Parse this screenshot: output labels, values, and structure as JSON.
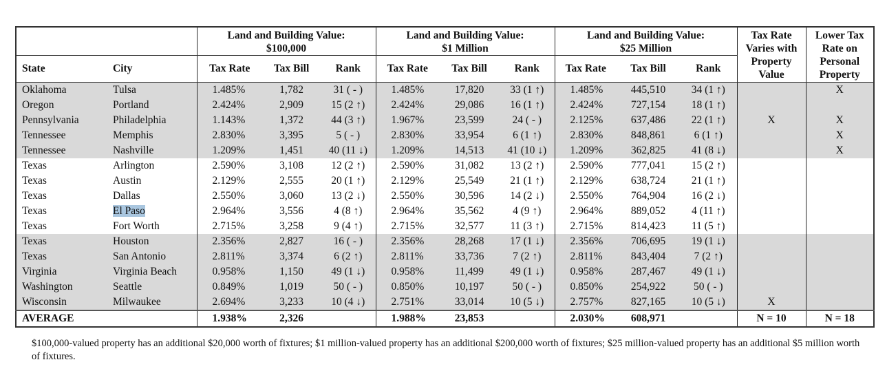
{
  "headers": {
    "group1": "Land and Building Value:",
    "group1_sub": "$100,000",
    "group2": "Land and Building Value:",
    "group2_sub": "$1 Million",
    "group3": "Land and Building Value:",
    "group3_sub": "$25 Million",
    "state": "State",
    "city": "City",
    "tax_rate": "Tax Rate",
    "tax_bill": "Tax Bill",
    "rank": "Rank",
    "varies": "Tax Rate Varies with Property Value",
    "lower": "Lower Tax Rate on Personal Property"
  },
  "rows": [
    {
      "state": "Oklahoma",
      "city": "Tulsa",
      "r1": "1.485%",
      "b1": "1,782",
      "k1": "31 ( - )",
      "r2": "1.485%",
      "b2": "17,820",
      "k2": "33 (1 ↑)",
      "r3": "1.485%",
      "b3": "445,510",
      "k3": "34 (1 ↑)",
      "varies": "",
      "lower": "X"
    },
    {
      "state": "Oregon",
      "city": "Portland",
      "r1": "2.424%",
      "b1": "2,909",
      "k1": "15 (2 ↑)",
      "r2": "2.424%",
      "b2": "29,086",
      "k2": "16 (1 ↑)",
      "r3": "2.424%",
      "b3": "727,154",
      "k3": "18 (1 ↑)",
      "varies": "",
      "lower": ""
    },
    {
      "state": "Pennsylvania",
      "city": "Philadelphia",
      "r1": "1.143%",
      "b1": "1,372",
      "k1": "44 (3 ↑)",
      "r2": "1.967%",
      "b2": "23,599",
      "k2": "24 ( - )",
      "r3": "2.125%",
      "b3": "637,486",
      "k3": "22 (1 ↑)",
      "varies": "X",
      "lower": "X"
    },
    {
      "state": "Tennessee",
      "city": "Memphis",
      "r1": "2.830%",
      "b1": "3,395",
      "k1": "5 ( - )",
      "r2": "2.830%",
      "b2": "33,954",
      "k2": "6 (1 ↑)",
      "r3": "2.830%",
      "b3": "848,861",
      "k3": "6 (1 ↑)",
      "varies": "",
      "lower": "X"
    },
    {
      "state": "Tennessee",
      "city": "Nashville",
      "r1": "1.209%",
      "b1": "1,451",
      "k1": "40 (11 ↓)",
      "r2": "1.209%",
      "b2": "14,513",
      "k2": "41 (10 ↓)",
      "r3": "1.209%",
      "b3": "362,825",
      "k3": "41 (8 ↓)",
      "varies": "",
      "lower": "X"
    },
    {
      "state": "Texas",
      "city": "Arlington",
      "r1": "2.590%",
      "b1": "3,108",
      "k1": "12 (2 ↑)",
      "r2": "2.590%",
      "b2": "31,082",
      "k2": "13 (2 ↑)",
      "r3": "2.590%",
      "b3": "777,041",
      "k3": "15 (2 ↑)",
      "varies": "",
      "lower": ""
    },
    {
      "state": "Texas",
      "city": "Austin",
      "r1": "2.129%",
      "b1": "2,555",
      "k1": "20 (1 ↑)",
      "r2": "2.129%",
      "b2": "25,549",
      "k2": "21 (1 ↑)",
      "r3": "2.129%",
      "b3": "638,724",
      "k3": "21 (1 ↑)",
      "varies": "",
      "lower": ""
    },
    {
      "state": "Texas",
      "city": "Dallas",
      "r1": "2.550%",
      "b1": "3,060",
      "k1": "13 (2 ↓)",
      "r2": "2.550%",
      "b2": "30,596",
      "k2": "14 (2 ↓)",
      "r3": "2.550%",
      "b3": "764,904",
      "k3": "16 (2 ↓)",
      "varies": "",
      "lower": ""
    },
    {
      "state": "Texas",
      "city": "El Paso",
      "r1": "2.964%",
      "b1": "3,556",
      "k1": "4 (8 ↑)",
      "r2": "2.964%",
      "b2": "35,562",
      "k2": "4 (9 ↑)",
      "r3": "2.964%",
      "b3": "889,052",
      "k3": "4 (11 ↑)",
      "varies": "",
      "lower": "",
      "selected": true
    },
    {
      "state": "Texas",
      "city": "Fort Worth",
      "r1": "2.715%",
      "b1": "3,258",
      "k1": "9 (4 ↑)",
      "r2": "2.715%",
      "b2": "32,577",
      "k2": "11 (3 ↑)",
      "r3": "2.715%",
      "b3": "814,423",
      "k3": "11 (5 ↑)",
      "varies": "",
      "lower": ""
    },
    {
      "state": "Texas",
      "city": "Houston",
      "r1": "2.356%",
      "b1": "2,827",
      "k1": "16 ( - )",
      "r2": "2.356%",
      "b2": "28,268",
      "k2": "17 (1 ↓)",
      "r3": "2.356%",
      "b3": "706,695",
      "k3": "19 (1 ↓)",
      "varies": "",
      "lower": ""
    },
    {
      "state": "Texas",
      "city": "San Antonio",
      "r1": "2.811%",
      "b1": "3,374",
      "k1": "6 (2 ↑)",
      "r2": "2.811%",
      "b2": "33,736",
      "k2": "7 (2 ↑)",
      "r3": "2.811%",
      "b3": "843,404",
      "k3": "7 (2 ↑)",
      "varies": "",
      "lower": ""
    },
    {
      "state": "Virginia",
      "city": "Virginia Beach",
      "r1": "0.958%",
      "b1": "1,150",
      "k1": "49 (1 ↓)",
      "r2": "0.958%",
      "b2": "11,499",
      "k2": "49 (1 ↓)",
      "r3": "0.958%",
      "b3": "287,467",
      "k3": "49 (1 ↓)",
      "varies": "",
      "lower": ""
    },
    {
      "state": "Washington",
      "city": "Seattle",
      "r1": "0.849%",
      "b1": "1,019",
      "k1": "50 ( - )",
      "r2": "0.850%",
      "b2": "10,197",
      "k2": "50 ( - )",
      "r3": "0.850%",
      "b3": "254,922",
      "k3": "50 ( - )",
      "varies": "",
      "lower": ""
    },
    {
      "state": "Wisconsin",
      "city": "Milwaukee",
      "r1": "2.694%",
      "b1": "3,233",
      "k1": "10 (4 ↓)",
      "r2": "2.751%",
      "b2": "33,014",
      "k2": "10 (5 ↓)",
      "r3": "2.757%",
      "b3": "827,165",
      "k3": "10 (5 ↓)",
      "varies": "X",
      "lower": ""
    }
  ],
  "average": {
    "label": "AVERAGE",
    "r1": "1.938%",
    "b1": "2,326",
    "r2": "1.988%",
    "b2": "23,853",
    "r3": "2.030%",
    "b3": "608,971",
    "varies": "N = 10",
    "lower": "N = 18"
  },
  "footnote": "$100,000-valued property has an additional $20,000 worth of fixtures; $1 million-valued property has an additional $200,000 worth of fixtures; $25 million-valued property has an additional $5 million worth of fixtures.",
  "colors": {
    "band": "#d9d9d9",
    "selection": "#a9c6df"
  }
}
